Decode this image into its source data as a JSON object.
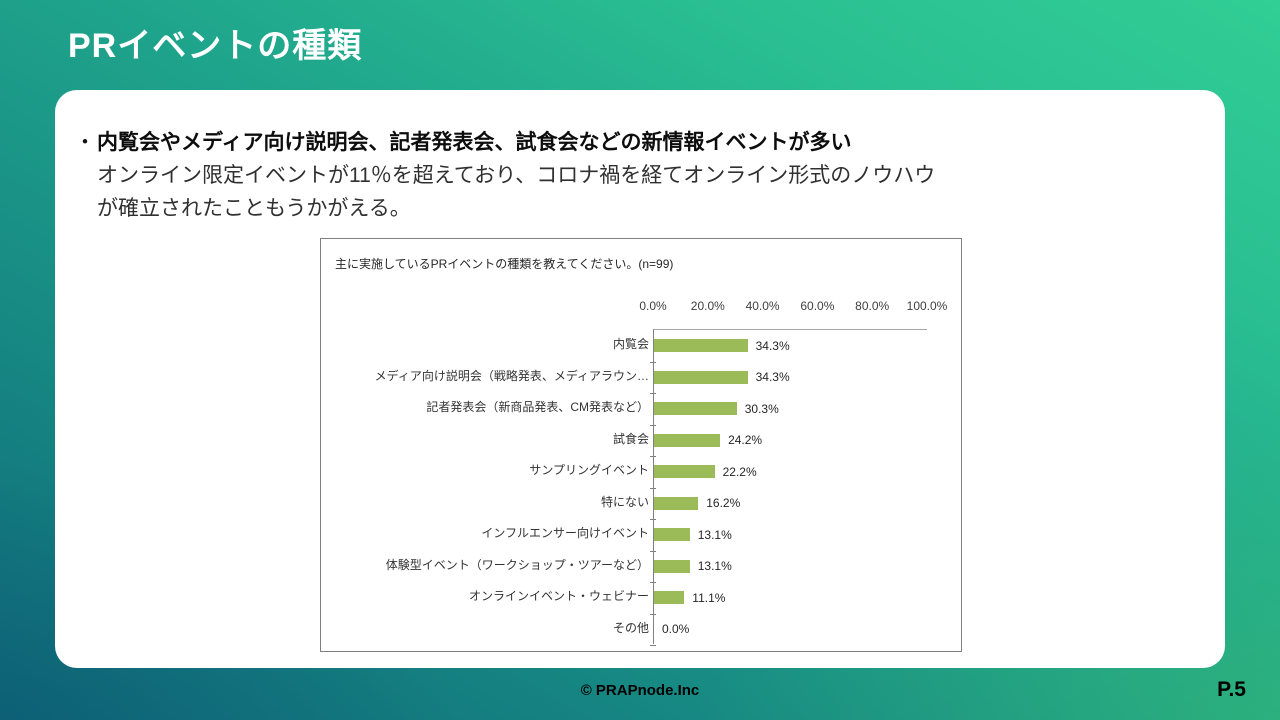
{
  "slide": {
    "title": "PRイベントの種類",
    "bullet": {
      "marker": "・",
      "line1": "内覧会やメディア向け説明会、記者発表会、試食会などの新情報イベントが多い",
      "line2": "オンライン限定イベントが11％を超えており、コロナ禍を経てオンライン形式のノウハウ",
      "line3": "が確立されたこともうかがえる。"
    },
    "footer": {
      "copyright": "© PRAPnode.Inc",
      "page": "P.5"
    },
    "colors": {
      "background_top_right": "#31CE95",
      "background_top_left": "#18A08B",
      "background_bottom_left": "#136E7F",
      "background_bottom_right": "#3CB877",
      "card": "#FFFFFF",
      "title_text": "#FFFFFF"
    }
  },
  "chart_data": {
    "type": "bar",
    "orientation": "horizontal",
    "title": "主に実施しているPRイベントの種類を教えてください。(n=99)",
    "categories": [
      "内覧会",
      "メディア向け説明会（戦略発表、メディアラウン…",
      "記者発表会（新商品発表、CM発表など）",
      "試食会",
      "サンプリングイベント",
      "特にない",
      "インフルエンサー向けイベント",
      "体験型イベント（ワークショップ・ツアーなど）",
      "オンラインイベント・ウェビナー",
      "その他"
    ],
    "values": [
      34.3,
      34.3,
      30.3,
      24.2,
      22.2,
      16.2,
      13.1,
      13.1,
      11.1,
      0.0
    ],
    "value_labels": [
      "34.3%",
      "34.3%",
      "30.3%",
      "24.2%",
      "22.2%",
      "16.2%",
      "13.1%",
      "13.1%",
      "11.1%",
      "0.0%"
    ],
    "x_ticks": [
      "0.0%",
      "20.0%",
      "40.0%",
      "60.0%",
      "80.0%",
      "100.0%"
    ],
    "xlim": [
      0,
      100
    ],
    "bar_color": "#9BBB59",
    "axis_color": "#808080",
    "grid": "off",
    "legend": "none"
  }
}
